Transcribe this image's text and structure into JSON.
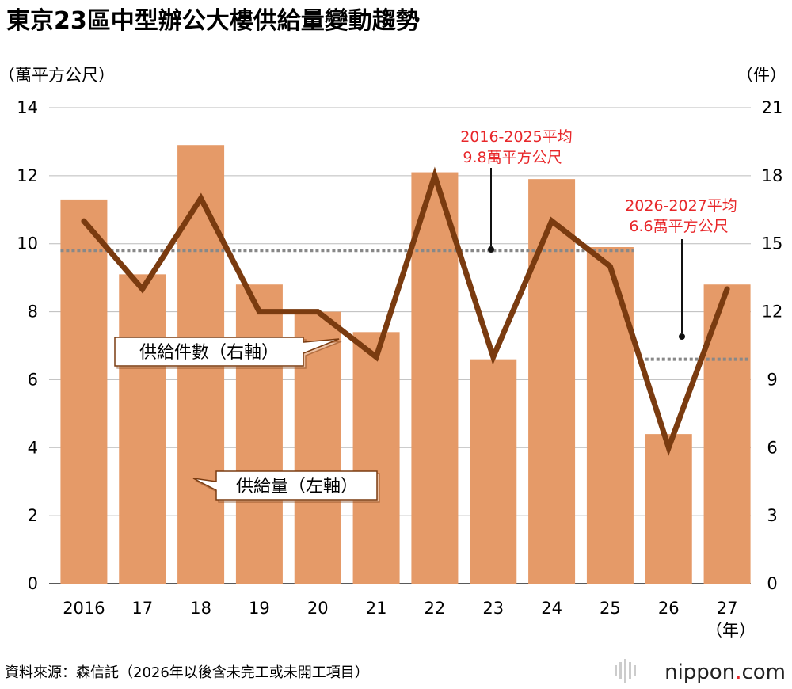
{
  "chart_data": {
    "type": "bar",
    "title": "東京23區中型辦公大樓供給量變動趨勢",
    "categories": [
      "2016",
      "17",
      "18",
      "19",
      "20",
      "21",
      "22",
      "23",
      "24",
      "25",
      "26",
      "27"
    ],
    "xlabel": "（年）",
    "series": [
      {
        "name": "供給量（左軸）",
        "type": "bar",
        "axis": "left",
        "color": "#e59a68",
        "values": [
          11.3,
          9.1,
          12.9,
          8.8,
          8.0,
          7.4,
          12.1,
          6.6,
          11.9,
          9.9,
          4.4,
          8.8
        ]
      },
      {
        "name": "供給件數（右軸）",
        "type": "line",
        "axis": "right",
        "color": "#7a3b10",
        "values": [
          16,
          13,
          17,
          12,
          12,
          10,
          18,
          10,
          16,
          14,
          6,
          13
        ]
      }
    ],
    "y_left": {
      "label": "（萬平方公尺）",
      "range": [
        0,
        14
      ],
      "ticks": [
        "0",
        "2",
        "4",
        "6",
        "8",
        "10",
        "12",
        "14"
      ]
    },
    "y_right": {
      "label": "（件）",
      "range": [
        0,
        21
      ],
      "ticks": [
        "0",
        "3",
        "6",
        "9",
        "12",
        "15",
        "18",
        "21"
      ]
    },
    "averages": [
      {
        "label_line1": "2016-2025平均",
        "label_line2": "9.8萬平方公尺",
        "value": 9.8,
        "from": "2016",
        "to": "25"
      },
      {
        "label_line1": "2026-2027平均",
        "label_line2": "6.6萬平方公尺",
        "value": 6.6,
        "from": "26",
        "to": "27"
      }
    ],
    "callouts": {
      "line": "供給件數（右軸）",
      "bar": "供給量（左軸）"
    },
    "grid": true,
    "legend": "callouts"
  },
  "footer": {
    "source": "資料來源：森信託（2026年以後含未完工或未開工項目）",
    "logo_main": "nippon",
    "logo_dot": ".",
    "logo_tld": "com"
  },
  "colors": {
    "bar": "#e59a68",
    "line": "#7a3b10",
    "average": "#888888",
    "average_text": "#e8272a",
    "callout_border": "#7a3b10"
  }
}
